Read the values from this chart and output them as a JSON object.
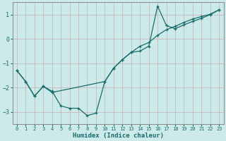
{
  "xlabel": "Humidex (Indice chaleur)",
  "bg_color": "#cceaea",
  "grid_color": "#c8b8b8",
  "line_color": "#1a6b6b",
  "spine_color": "#888888",
  "xlim": [
    -0.5,
    23.5
  ],
  "ylim": [
    -3.5,
    1.5
  ],
  "xticks": [
    0,
    1,
    2,
    3,
    4,
    5,
    6,
    7,
    8,
    9,
    10,
    11,
    12,
    13,
    14,
    15,
    16,
    17,
    18,
    19,
    20,
    21,
    22,
    23
  ],
  "yticks": [
    -3,
    -2,
    -1,
    0,
    1
  ],
  "line1_x": [
    0,
    1,
    2,
    3,
    4,
    5,
    6,
    7,
    8,
    9,
    10,
    11,
    12,
    13,
    14,
    15,
    16,
    17,
    18,
    19,
    20,
    21,
    22,
    23
  ],
  "line1_y": [
    -1.3,
    -1.75,
    -2.35,
    -1.95,
    -2.15,
    -2.75,
    -2.85,
    -2.85,
    -3.15,
    -3.05,
    -1.75,
    -1.2,
    -0.85,
    -0.55,
    -0.3,
    -0.15,
    0.15,
    0.38,
    0.52,
    0.68,
    0.82,
    0.92,
    1.02,
    1.2
  ],
  "line2_x": [
    0,
    1,
    2,
    3,
    4,
    10,
    11,
    12,
    13,
    14,
    15,
    16,
    17,
    18,
    19,
    20,
    21,
    22,
    23
  ],
  "line2_y": [
    -1.3,
    -1.75,
    -2.35,
    -1.95,
    -2.2,
    -1.75,
    -1.2,
    -0.85,
    -0.55,
    -0.5,
    -0.3,
    1.35,
    0.55,
    0.42,
    0.58,
    0.72,
    0.85,
    1.0,
    1.2
  ]
}
